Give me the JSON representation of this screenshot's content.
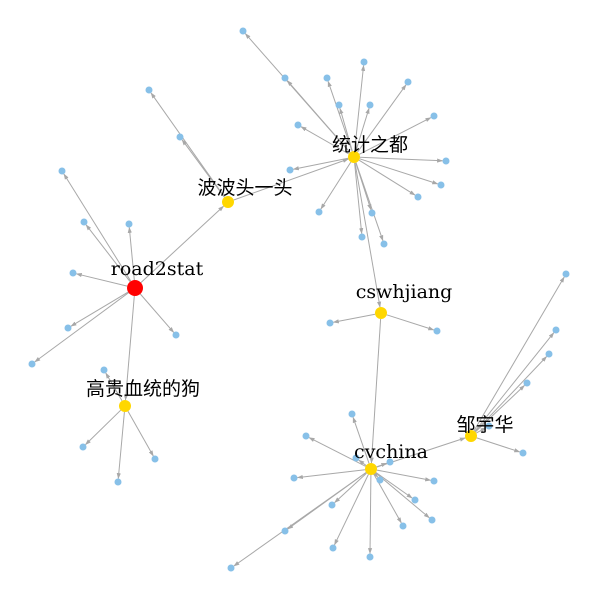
{
  "colors": {
    "root": "#ff0000",
    "hub": "#ffd700",
    "leaf": "#87c0e8",
    "edge": "#a8a8a8",
    "label": "#000000"
  },
  "graph": {
    "type": "directed-network",
    "nodes": [
      {
        "id": "road2stat",
        "label": "road2stat",
        "kind": "root"
      },
      {
        "id": "bobo",
        "label": "波波头一头",
        "kind": "hub"
      },
      {
        "id": "tongji",
        "label": "统计之都",
        "kind": "hub"
      },
      {
        "id": "cswhjiang",
        "label": "cswhjiang",
        "kind": "hub"
      },
      {
        "id": "cvchina",
        "label": "cvchina",
        "kind": "hub"
      },
      {
        "id": "zou",
        "label": "邹宇华",
        "kind": "hub"
      },
      {
        "id": "gaogui",
        "label": "高贵血统的狗",
        "kind": "hub"
      }
    ],
    "edges": [
      {
        "from": "road2stat",
        "to": "bobo"
      },
      {
        "from": "road2stat",
        "to": "gaogui"
      },
      {
        "from": "bobo",
        "to": "tongji"
      },
      {
        "from": "tongji",
        "to": "cswhjiang"
      },
      {
        "from": "cswhjiang",
        "to": "cvchina"
      },
      {
        "from": "cvchina",
        "to": "zou"
      }
    ],
    "leaf_counts": {
      "road2stat": 7,
      "bobo": 2,
      "tongji": 17,
      "cswhjiang": 2,
      "cvchina": 15,
      "zou": 6,
      "gaogui": 4
    }
  }
}
